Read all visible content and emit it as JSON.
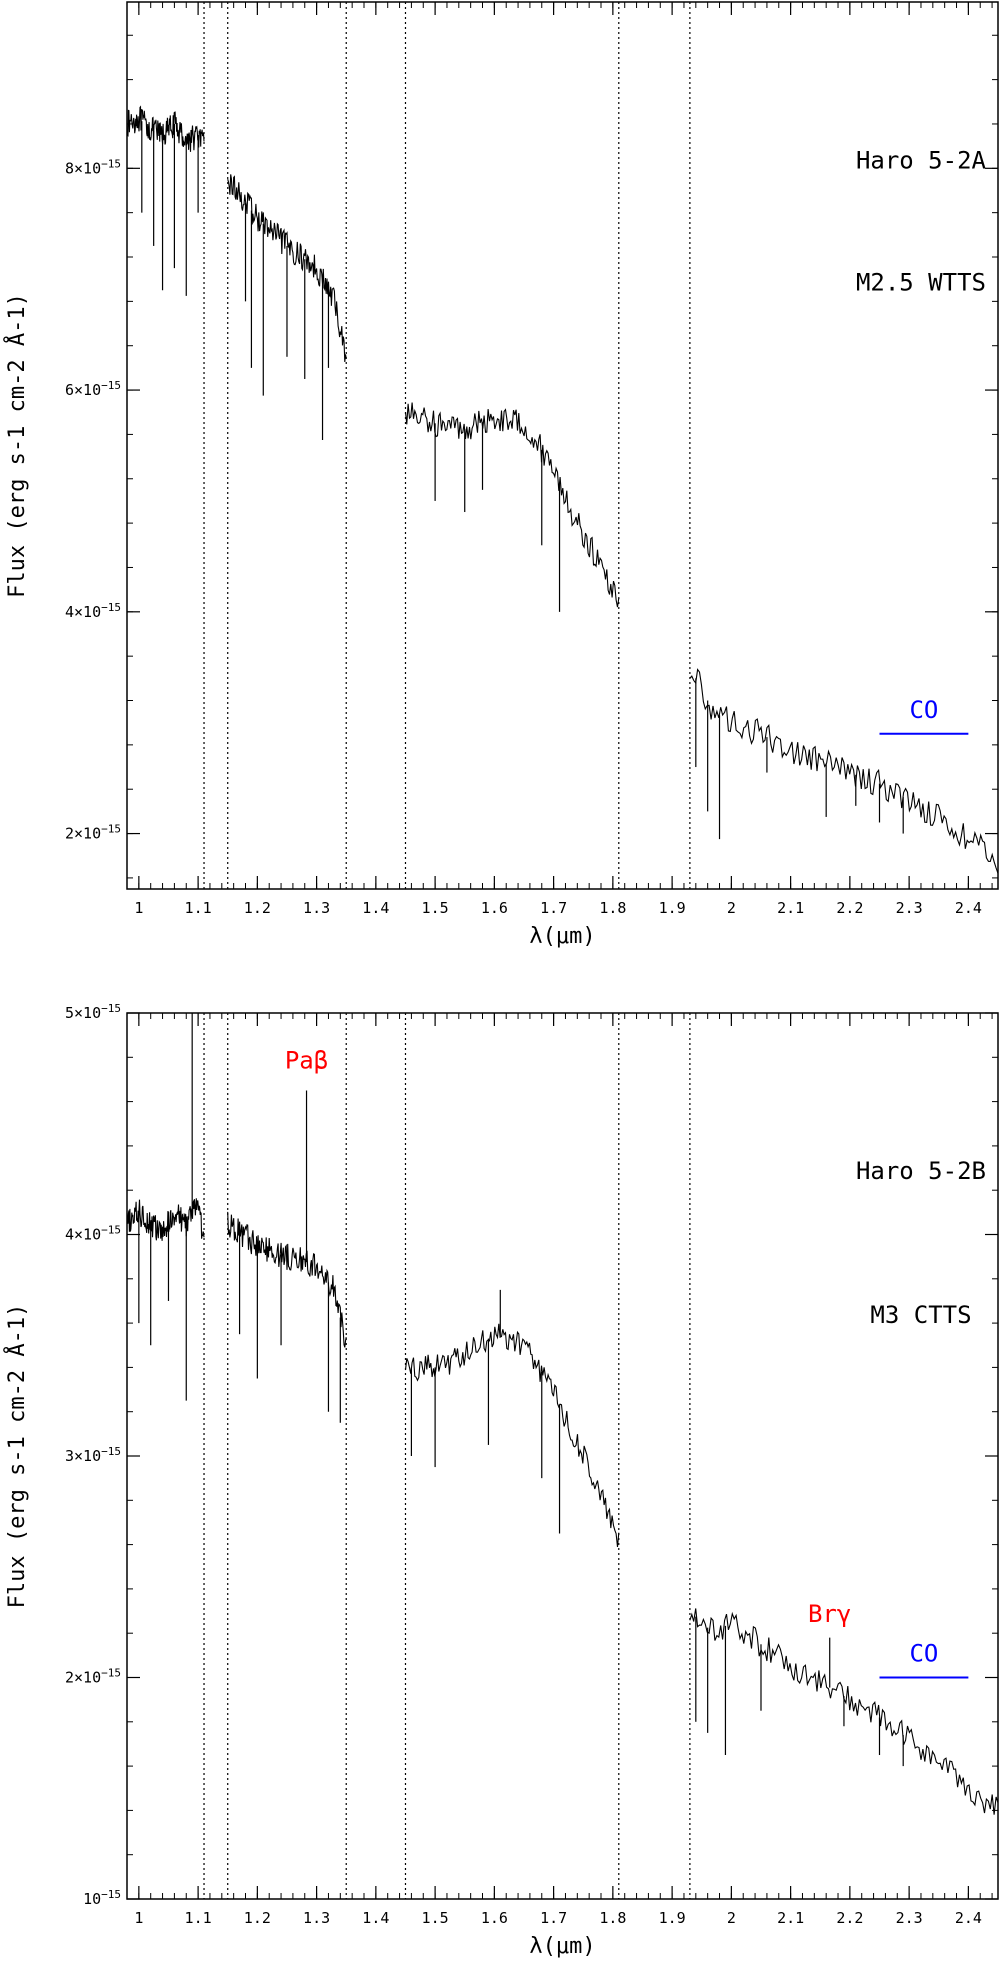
{
  "chart_data": [
    {
      "type": "line",
      "xlabel": "λ(μm)",
      "ylabel": "Flux (erg s-1 cm-2 Å-1)",
      "xlim": [
        0.98,
        2.45
      ],
      "ylim": [
        1.5e-15,
        9.5e-15
      ],
      "x_ticks": [
        {
          "v": 1.0,
          "label": "1"
        },
        {
          "v": 1.1,
          "label": "1.1"
        },
        {
          "v": 1.2,
          "label": "1.2"
        },
        {
          "v": 1.3,
          "label": "1.3"
        },
        {
          "v": 1.4,
          "label": "1.4"
        },
        {
          "v": 1.5,
          "label": "1.5"
        },
        {
          "v": 1.6,
          "label": "1.6"
        },
        {
          "v": 1.7,
          "label": "1.7"
        },
        {
          "v": 1.8,
          "label": "1.8"
        },
        {
          "v": 1.9,
          "label": "1.9"
        },
        {
          "v": 2.0,
          "label": "2"
        },
        {
          "v": 2.1,
          "label": "2.1"
        },
        {
          "v": 2.2,
          "label": "2.2"
        },
        {
          "v": 2.3,
          "label": "2.3"
        },
        {
          "v": 2.4,
          "label": "2.4"
        }
      ],
      "y_ticks": [
        {
          "v": 2e-15,
          "mant": "2",
          "exp": "−15"
        },
        {
          "v": 4e-15,
          "mant": "4",
          "exp": "−15"
        },
        {
          "v": 6e-15,
          "mant": "6",
          "exp": "−15"
        },
        {
          "v": 8e-15,
          "mant": "8",
          "exp": "−15"
        }
      ],
      "vlines": [
        1.11,
        1.15,
        1.35,
        1.45,
        1.81,
        1.93
      ],
      "annotations": [
        {
          "text": "Haro 5-2A",
          "x": 2.32,
          "y": 8e-15,
          "color": "#000000"
        },
        {
          "text": "M2.5 WTTS",
          "x": 2.32,
          "y": 6.9e-15,
          "color": "#000000"
        }
      ],
      "co_band": {
        "label": "CO",
        "x": [
          2.25,
          2.4
        ],
        "y": 2.9e-15,
        "color": "#0000ff"
      },
      "series": [
        {
          "color": "#000000",
          "segments": [
            {
              "x": [
                0.98,
                1.0,
                1.02,
                1.04,
                1.06,
                1.08,
                1.1,
                1.11
              ],
              "y": [
                8.4e-15,
                8.45e-15,
                8.35e-15,
                8.3e-15,
                8.4e-15,
                8.25e-15,
                8.3e-15,
                8.2e-15
              ]
            },
            {
              "x": [
                1.15,
                1.2,
                1.25,
                1.3,
                1.33,
                1.35
              ],
              "y": [
                7.9e-15,
                7.55e-15,
                7.3e-15,
                7.1e-15,
                6.8e-15,
                6.3e-15
              ]
            },
            {
              "x": [
                1.45,
                1.5,
                1.55,
                1.6,
                1.65,
                1.7,
                1.73,
                1.76,
                1.79,
                1.81
              ],
              "y": [
                5.8e-15,
                5.7e-15,
                5.65e-15,
                5.75e-15,
                5.7e-15,
                5.3e-15,
                4.9e-15,
                4.6e-15,
                4.3e-15,
                4.1e-15
              ]
            },
            {
              "x": [
                1.93,
                1.95,
                1.97,
                2.0,
                2.05,
                2.1,
                2.15,
                2.2,
                2.25,
                2.3,
                2.35,
                2.4,
                2.45
              ],
              "y": [
                3.5e-15,
                3.3e-15,
                3.1e-15,
                3e-15,
                2.9e-15,
                2.75e-15,
                2.65e-15,
                2.55e-15,
                2.45e-15,
                2.3e-15,
                2.15e-15,
                1.95e-15,
                1.75e-15
              ]
            }
          ],
          "dips": [
            {
              "x": 1.005,
              "y": 7.6e-15
            },
            {
              "x": 1.025,
              "y": 7.3e-15
            },
            {
              "x": 1.04,
              "y": 6.9e-15
            },
            {
              "x": 1.06,
              "y": 7.1e-15
            },
            {
              "x": 1.08,
              "y": 6.85e-15
            },
            {
              "x": 1.1,
              "y": 7.6e-15
            },
            {
              "x": 1.18,
              "y": 6.8e-15
            },
            {
              "x": 1.19,
              "y": 6.2e-15
            },
            {
              "x": 1.21,
              "y": 5.95e-15
            },
            {
              "x": 1.25,
              "y": 6.3e-15
            },
            {
              "x": 1.28,
              "y": 6.1e-15
            },
            {
              "x": 1.31,
              "y": 5.55e-15
            },
            {
              "x": 1.32,
              "y": 6.2e-15
            },
            {
              "x": 1.5,
              "y": 5e-15
            },
            {
              "x": 1.55,
              "y": 4.9e-15
            },
            {
              "x": 1.58,
              "y": 5.1e-15
            },
            {
              "x": 1.68,
              "y": 4.6e-15
            },
            {
              "x": 1.71,
              "y": 4e-15
            },
            {
              "x": 1.94,
              "y": 2.6e-15
            },
            {
              "x": 1.96,
              "y": 2.2e-15
            },
            {
              "x": 1.98,
              "y": 1.95e-15
            },
            {
              "x": 2.06,
              "y": 2.55e-15
            },
            {
              "x": 2.16,
              "y": 2.15e-15
            },
            {
              "x": 2.21,
              "y": 2.25e-15
            },
            {
              "x": 2.25,
              "y": 2.1e-15
            },
            {
              "x": 2.29,
              "y": 2e-15
            }
          ]
        }
      ]
    },
    {
      "type": "line",
      "xlabel": "λ(μm)",
      "ylabel": "Flux (erg s-1 cm-2 Å-1)",
      "xlim": [
        0.98,
        2.45
      ],
      "ylim": [
        1e-15,
        5e-15
      ],
      "x_ticks": [
        {
          "v": 1.0,
          "label": "1"
        },
        {
          "v": 1.1,
          "label": "1.1"
        },
        {
          "v": 1.2,
          "label": "1.2"
        },
        {
          "v": 1.3,
          "label": "1.3"
        },
        {
          "v": 1.4,
          "label": "1.4"
        },
        {
          "v": 1.5,
          "label": "1.5"
        },
        {
          "v": 1.6,
          "label": "1.6"
        },
        {
          "v": 1.7,
          "label": "1.7"
        },
        {
          "v": 1.8,
          "label": "1.8"
        },
        {
          "v": 1.9,
          "label": "1.9"
        },
        {
          "v": 2.0,
          "label": "2"
        },
        {
          "v": 2.1,
          "label": "2.1"
        },
        {
          "v": 2.2,
          "label": "2.2"
        },
        {
          "v": 2.3,
          "label": "2.3"
        },
        {
          "v": 2.4,
          "label": "2.4"
        }
      ],
      "y_ticks": [
        {
          "v": 1e-15,
          "mant": "1",
          "exp": "−15",
          "zero_mant": true
        },
        {
          "v": 2e-15,
          "mant": "2",
          "exp": "−15"
        },
        {
          "v": 3e-15,
          "mant": "3",
          "exp": "−15"
        },
        {
          "v": 4e-15,
          "mant": "4",
          "exp": "−15"
        },
        {
          "v": 5e-15,
          "mant": "5",
          "exp": "−15"
        }
      ],
      "vlines": [
        1.11,
        1.15,
        1.35,
        1.45,
        1.81,
        1.93
      ],
      "annotations": [
        {
          "text": "Haro 5-2B",
          "x": 2.32,
          "y": 4.25e-15,
          "color": "#000000"
        },
        {
          "text": "M3 CTTS",
          "x": 2.32,
          "y": 3.6e-15,
          "color": "#000000"
        },
        {
          "text": "Paβ",
          "x": 1.283,
          "y": 4.75e-15,
          "color": "#ff0000"
        },
        {
          "text": "Brγ",
          "x": 2.166,
          "y": 2.25e-15,
          "color": "#ff0000"
        }
      ],
      "co_band": {
        "label": "CO",
        "x": [
          2.25,
          2.4
        ],
        "y": 2e-15,
        "color": "#0000ff"
      },
      "series": [
        {
          "color": "#000000",
          "segments": [
            {
              "x": [
                0.98,
                1.0,
                1.02,
                1.04,
                1.06,
                1.08,
                1.1,
                1.11
              ],
              "y": [
                4.05e-15,
                4.1e-15,
                4.05e-15,
                4e-15,
                4.1e-15,
                4.05e-15,
                4.15e-15,
                3.95e-15
              ]
            },
            {
              "x": [
                1.15,
                1.2,
                1.25,
                1.28,
                1.3,
                1.33,
                1.35
              ],
              "y": [
                4.05e-15,
                3.95e-15,
                3.9e-15,
                3.88e-15,
                3.85e-15,
                3.75e-15,
                3.5e-15
              ]
            },
            {
              "x": [
                1.45,
                1.5,
                1.55,
                1.6,
                1.65,
                1.7,
                1.73,
                1.76,
                1.79,
                1.81
              ],
              "y": [
                3.4e-15,
                3.4e-15,
                3.45e-15,
                3.55e-15,
                3.5e-15,
                3.3e-15,
                3.1e-15,
                2.95e-15,
                2.75e-15,
                2.6e-15
              ]
            },
            {
              "x": [
                1.93,
                1.95,
                1.97,
                2.0,
                2.05,
                2.1,
                2.15,
                2.2,
                2.25,
                2.3,
                2.35,
                2.4,
                2.45
              ],
              "y": [
                2.3e-15,
                2.25e-15,
                2.2e-15,
                2.25e-15,
                2.15e-15,
                2.05e-15,
                1.98e-15,
                1.9e-15,
                1.82e-15,
                1.72e-15,
                1.62e-15,
                1.5e-15,
                1.4e-15
              ]
            }
          ],
          "dips": [
            {
              "x": 1.0,
              "y": 3.6e-15
            },
            {
              "x": 1.02,
              "y": 3.5e-15
            },
            {
              "x": 1.05,
              "y": 3.7e-15
            },
            {
              "x": 1.08,
              "y": 3.25e-15
            },
            {
              "x": 1.17,
              "y": 3.55e-15
            },
            {
              "x": 1.2,
              "y": 3.35e-15
            },
            {
              "x": 1.24,
              "y": 3.5e-15
            },
            {
              "x": 1.32,
              "y": 3.2e-15
            },
            {
              "x": 1.34,
              "y": 3.15e-15
            },
            {
              "x": 1.46,
              "y": 3e-15
            },
            {
              "x": 1.5,
              "y": 2.95e-15
            },
            {
              "x": 1.59,
              "y": 3.05e-15
            },
            {
              "x": 1.68,
              "y": 2.9e-15
            },
            {
              "x": 1.71,
              "y": 2.65e-15
            },
            {
              "x": 1.94,
              "y": 1.8e-15
            },
            {
              "x": 1.96,
              "y": 1.75e-15
            },
            {
              "x": 1.99,
              "y": 1.65e-15
            },
            {
              "x": 2.05,
              "y": 1.85e-15
            },
            {
              "x": 2.19,
              "y": 1.78e-15
            },
            {
              "x": 2.25,
              "y": 1.65e-15
            },
            {
              "x": 2.29,
              "y": 1.6e-15
            }
          ],
          "spikes": [
            {
              "x": 1.09,
              "y": 5e-15
            },
            {
              "x": 1.283,
              "y": 4.65e-15
            },
            {
              "x": 1.61,
              "y": 3.75e-15
            },
            {
              "x": 2.166,
              "y": 2.18e-15
            }
          ]
        }
      ]
    }
  ]
}
